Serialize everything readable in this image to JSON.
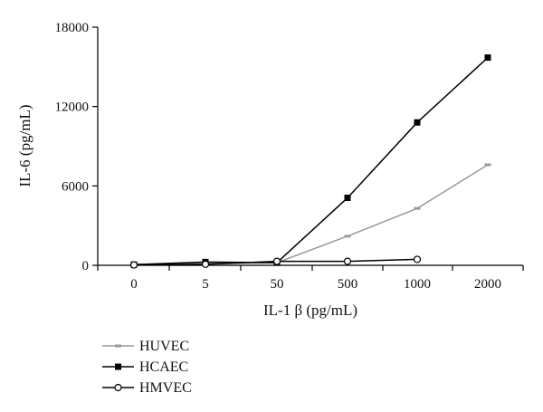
{
  "chart_data": {
    "type": "line",
    "title": "",
    "categories": [
      "0",
      "5",
      "50",
      "500",
      "1000",
      "2000"
    ],
    "xlabel": "IL-1 β (pg/mL)",
    "ylabel": "IL-6 (pg/mL)",
    "ylim": [
      0,
      18000
    ],
    "yticks": [
      0,
      6000,
      12000,
      18000
    ],
    "grid": false,
    "legend_position": "bottom-left",
    "series": [
      {
        "name": "HUVEC",
        "color": "#999999",
        "marker": "dash",
        "values": [
          80,
          120,
          200,
          2200,
          4300,
          7600
        ]
      },
      {
        "name": "HCAEC",
        "color": "#000000",
        "marker": "filled-square",
        "values": [
          50,
          250,
          200,
          5100,
          10800,
          15700
        ]
      },
      {
        "name": "HMVEC",
        "color": "#000000",
        "marker": "open-circle",
        "values": [
          30,
          80,
          300,
          300,
          450,
          null
        ]
      }
    ]
  }
}
